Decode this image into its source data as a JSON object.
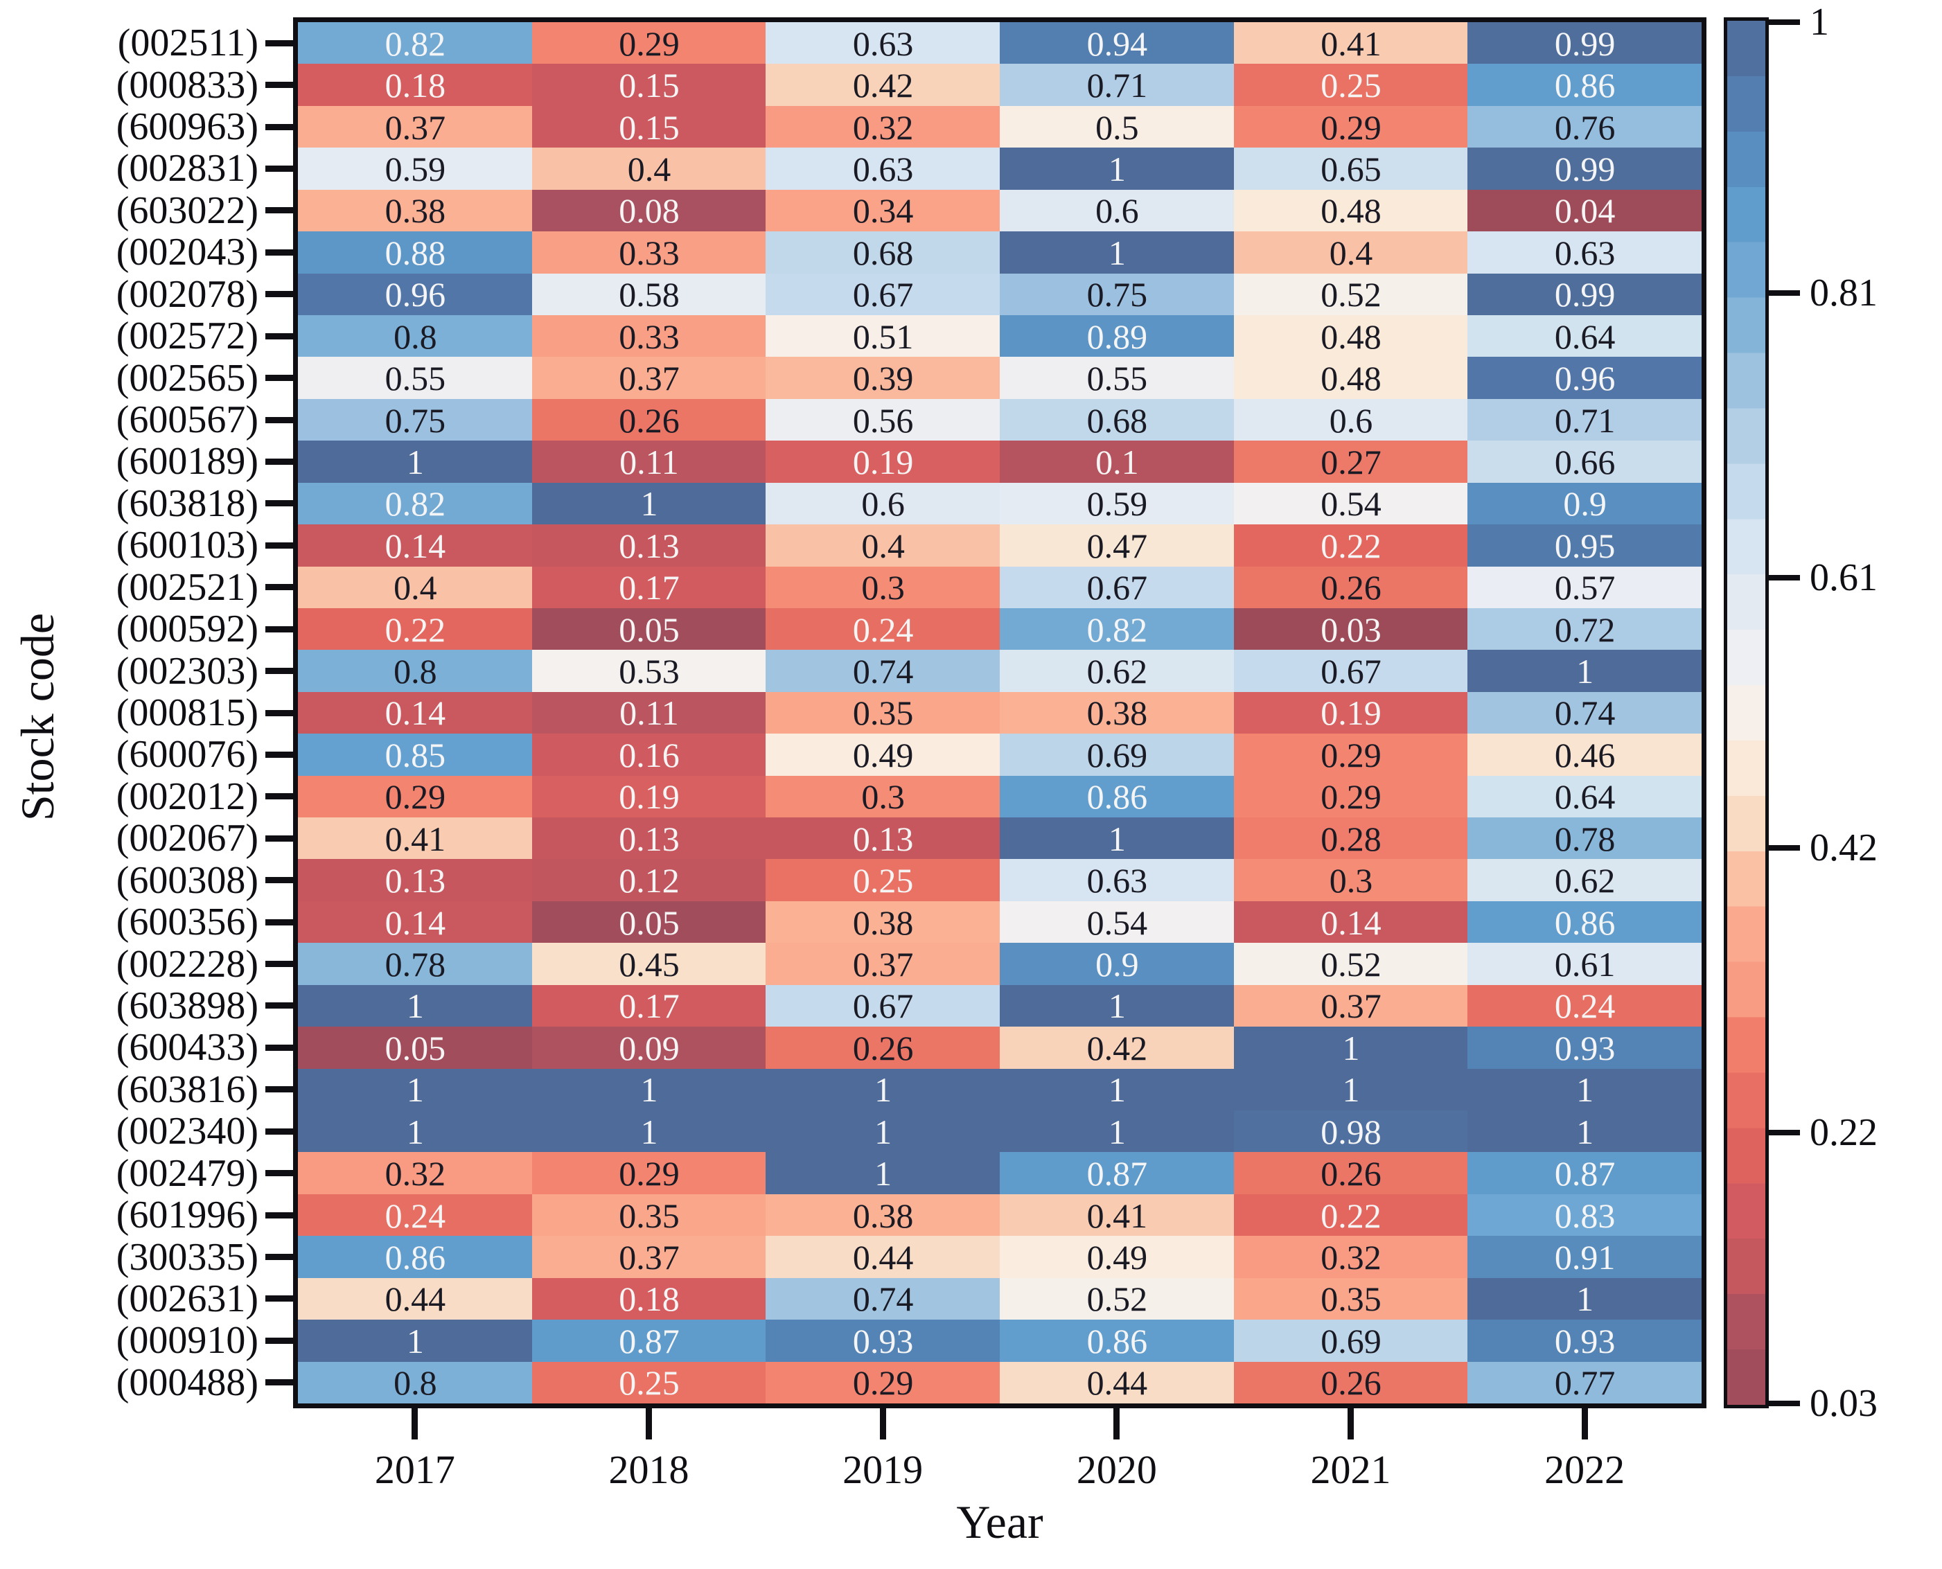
{
  "chart_data": {
    "type": "heatmap",
    "title": "",
    "xlabel": "Year",
    "ylabel": "Stock code",
    "columns": [
      "2017",
      "2018",
      "2019",
      "2020",
      "2021",
      "2022"
    ],
    "rows": [
      {
        "label": "(002511)",
        "values": [
          0.82,
          0.29,
          0.63,
          0.94,
          0.41,
          0.99
        ]
      },
      {
        "label": "(000833)",
        "values": [
          0.18,
          0.15,
          0.42,
          0.71,
          0.25,
          0.86
        ]
      },
      {
        "label": "(600963)",
        "values": [
          0.37,
          0.15,
          0.32,
          0.5,
          0.29,
          0.76
        ]
      },
      {
        "label": "(002831)",
        "values": [
          0.59,
          0.4,
          0.63,
          1,
          0.65,
          0.99
        ]
      },
      {
        "label": "(603022)",
        "values": [
          0.38,
          0.08,
          0.34,
          0.6,
          0.48,
          0.04
        ]
      },
      {
        "label": "(002043)",
        "values": [
          0.88,
          0.33,
          0.68,
          1,
          0.4,
          0.63
        ]
      },
      {
        "label": "(002078)",
        "values": [
          0.96,
          0.58,
          0.67,
          0.75,
          0.52,
          0.99
        ]
      },
      {
        "label": "(002572)",
        "values": [
          0.8,
          0.33,
          0.51,
          0.89,
          0.48,
          0.64
        ]
      },
      {
        "label": "(002565)",
        "values": [
          0.55,
          0.37,
          0.39,
          0.55,
          0.48,
          0.96
        ]
      },
      {
        "label": "(600567)",
        "values": [
          0.75,
          0.26,
          0.56,
          0.68,
          0.6,
          0.71
        ]
      },
      {
        "label": "(600189)",
        "values": [
          1,
          0.11,
          0.19,
          0.1,
          0.27,
          0.66
        ]
      },
      {
        "label": "(603818)",
        "values": [
          0.82,
          1,
          0.6,
          0.59,
          0.54,
          0.9
        ]
      },
      {
        "label": "(600103)",
        "values": [
          0.14,
          0.13,
          0.4,
          0.47,
          0.22,
          0.95
        ]
      },
      {
        "label": "(002521)",
        "values": [
          0.4,
          0.17,
          0.3,
          0.67,
          0.26,
          0.57
        ]
      },
      {
        "label": "(000592)",
        "values": [
          0.22,
          0.05,
          0.24,
          0.82,
          0.03,
          0.72
        ]
      },
      {
        "label": "(002303)",
        "values": [
          0.8,
          0.53,
          0.74,
          0.62,
          0.67,
          1
        ]
      },
      {
        "label": "(000815)",
        "values": [
          0.14,
          0.11,
          0.35,
          0.38,
          0.19,
          0.74
        ]
      },
      {
        "label": "(600076)",
        "values": [
          0.85,
          0.16,
          0.49,
          0.69,
          0.29,
          0.46
        ]
      },
      {
        "label": "(002012)",
        "values": [
          0.29,
          0.19,
          0.3,
          0.86,
          0.29,
          0.64
        ]
      },
      {
        "label": "(002067)",
        "values": [
          0.41,
          0.13,
          0.13,
          1,
          0.28,
          0.78
        ]
      },
      {
        "label": "(600308)",
        "values": [
          0.13,
          0.12,
          0.25,
          0.63,
          0.3,
          0.62
        ]
      },
      {
        "label": "(600356)",
        "values": [
          0.14,
          0.05,
          0.38,
          0.54,
          0.14,
          0.86
        ]
      },
      {
        "label": "(002228)",
        "values": [
          0.78,
          0.45,
          0.37,
          0.9,
          0.52,
          0.61
        ]
      },
      {
        "label": "(603898)",
        "values": [
          1,
          0.17,
          0.67,
          1,
          0.37,
          0.24
        ]
      },
      {
        "label": "(600433)",
        "values": [
          0.05,
          0.09,
          0.26,
          0.42,
          1,
          0.93
        ]
      },
      {
        "label": "(603816)",
        "values": [
          1,
          1,
          1,
          1,
          1,
          1
        ]
      },
      {
        "label": "(002340)",
        "values": [
          1,
          1,
          1,
          1,
          0.98,
          1
        ]
      },
      {
        "label": "(002479)",
        "values": [
          0.32,
          0.29,
          1,
          0.87,
          0.26,
          0.87
        ]
      },
      {
        "label": "(601996)",
        "values": [
          0.24,
          0.35,
          0.38,
          0.41,
          0.22,
          0.83
        ]
      },
      {
        "label": "(300335)",
        "values": [
          0.86,
          0.37,
          0.44,
          0.49,
          0.32,
          0.91
        ]
      },
      {
        "label": "(002631)",
        "values": [
          0.44,
          0.18,
          0.74,
          0.52,
          0.35,
          1
        ]
      },
      {
        "label": "(000910)",
        "values": [
          1,
          0.87,
          0.93,
          0.86,
          0.69,
          0.93
        ]
      },
      {
        "label": "(000488)",
        "values": [
          0.8,
          0.25,
          0.29,
          0.44,
          0.26,
          0.77
        ]
      }
    ],
    "colorbar": {
      "tick_labels": [
        "1",
        "0.81",
        "0.61",
        "0.42",
        "0.22",
        "0.03"
      ],
      "tick_values": [
        1,
        0.81,
        0.61,
        0.42,
        0.22,
        0.03
      ],
      "vmin": 0.03,
      "vmax": 1,
      "bands": 25
    },
    "colormap_anchors": [
      [
        0.0,
        "#9d4b59"
      ],
      [
        0.05,
        "#a85160"
      ],
      [
        0.1,
        "#c5575e"
      ],
      [
        0.15,
        "#d45c60"
      ],
      [
        0.2,
        "#e4685f"
      ],
      [
        0.26,
        "#f07e6b"
      ],
      [
        0.3,
        "#f99c84"
      ],
      [
        0.36,
        "#fbb093"
      ],
      [
        0.4,
        "#f8d2b8"
      ],
      [
        0.44,
        "#f9e3cf"
      ],
      [
        0.48,
        "#faeee2"
      ],
      [
        0.52,
        "#f3f1f1"
      ],
      [
        0.56,
        "#e9edf3"
      ],
      [
        0.62,
        "#d6e5f1"
      ],
      [
        0.68,
        "#bcd5e9"
      ],
      [
        0.74,
        "#9dc2e0"
      ],
      [
        0.8,
        "#78aed6"
      ],
      [
        0.85,
        "#63a0cf"
      ],
      [
        0.89,
        "#5a93c4"
      ],
      [
        0.93,
        "#5482b4"
      ],
      [
        0.96,
        "#5175a6"
      ],
      [
        1.0,
        "#4e6b99"
      ]
    ],
    "annotation": {
      "white_text_low_max": 0.25,
      "white_text_high_min": 0.82,
      "white_color": "#f5f5f5",
      "dark_color": "#1a1a24"
    },
    "layout": {
      "grid": false,
      "legend": "colorbar-right"
    }
  },
  "colors": {
    "background": "#ffffff",
    "axis": "#0e0e13"
  }
}
